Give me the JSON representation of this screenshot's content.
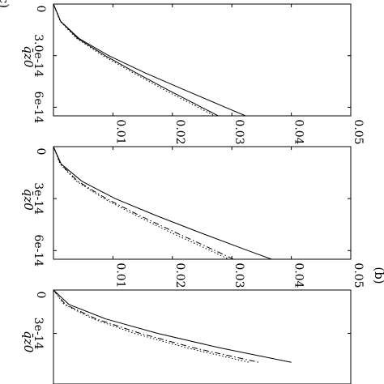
{
  "chart_data": [
    {
      "type": "line",
      "panel_label": "",
      "xlabel": "q̄z0",
      "ylabel": "",
      "xlim": [
        0,
        6.5e-14
      ],
      "ylim": [
        0,
        0.05
      ],
      "x_ticks": [
        "0",
        "3.0e-14",
        "6e-14"
      ],
      "y_ticks": [
        "0.01",
        "0.02",
        "0.03",
        "0.04",
        "0.05"
      ],
      "series": [
        {
          "style": "solid",
          "x": [
            0,
            1e-14,
            2e-14,
            3e-14,
            4e-14,
            5e-14,
            6e-14,
            6.5e-14
          ],
          "y": [
            0,
            0.0012,
            0.0043,
            0.0093,
            0.0154,
            0.0221,
            0.0289,
            0.0323
          ]
        },
        {
          "style": "solid",
          "x": [
            0,
            1e-14,
            2e-14,
            3e-14,
            4e-14,
            5e-14,
            6e-14,
            6.5e-14
          ],
          "y": [
            0,
            0.0012,
            0.0041,
            0.0087,
            0.0139,
            0.0193,
            0.0249,
            0.0277
          ]
        },
        {
          "style": "dotted",
          "x": [
            0,
            1e-14,
            2e-14,
            3e-14,
            4e-14,
            5e-14,
            6e-14,
            6.5e-14
          ],
          "y": [
            0,
            0.0011,
            0.0039,
            0.0083,
            0.0134,
            0.0187,
            0.0243,
            0.0271
          ]
        }
      ]
    },
    {
      "type": "line",
      "panel_label": "(b)",
      "xlabel": "q̄z0",
      "ylabel": "",
      "xlim": [
        0,
        6.5e-14
      ],
      "ylim": [
        0,
        0.05
      ],
      "x_ticks": [
        "0",
        "3e-14",
        "6e-14"
      ],
      "y_ticks": [
        "0.01",
        "0.02",
        "0.03",
        "0.04",
        "0.05"
      ],
      "series": [
        {
          "style": "solid",
          "x": [
            0,
            1e-14,
            2e-14,
            3e-14,
            4e-14,
            5e-14,
            6e-14,
            6.5e-14
          ],
          "y": [
            0,
            0.0013,
            0.0048,
            0.0104,
            0.0174,
            0.0249,
            0.0327,
            0.0367
          ]
        },
        {
          "style": "dashdot",
          "x": [
            0,
            1e-14,
            2e-14,
            3e-14,
            4e-14,
            5e-14,
            6e-14,
            6.5e-14
          ],
          "y": [
            0,
            0.0012,
            0.0041,
            0.0089,
            0.0146,
            0.0208,
            0.0272,
            0.0303
          ]
        },
        {
          "style": "dotted",
          "x": [
            0,
            1e-14,
            2e-14,
            3e-14,
            4e-14,
            5e-14,
            6e-14,
            6.5e-14
          ],
          "y": [
            0,
            0.0011,
            0.0039,
            0.0085,
            0.014,
            0.02,
            0.0264,
            0.0295
          ]
        }
      ]
    },
    {
      "type": "line",
      "panel_label": "(c)",
      "xlabel": "q̄z0",
      "ylabel": "",
      "xlim": [
        0,
        6.5e-14
      ],
      "ylim": [
        0,
        0.05
      ],
      "x_ticks": [
        "0",
        "3e-14"
      ],
      "y_ticks": [],
      "series": [
        {
          "style": "solid",
          "x": [
            0,
            1e-14,
            2e-14,
            3e-14,
            4e-14,
            5e-14
          ],
          "y": [
            0,
            0.0026,
            0.0088,
            0.0175,
            0.028,
            0.04
          ]
        },
        {
          "style": "dashdot",
          "x": [
            0,
            1e-14,
            2e-14,
            3e-14,
            4e-14,
            5e-14
          ],
          "y": [
            0,
            0.002,
            0.0072,
            0.0146,
            0.0236,
            0.0345
          ]
        },
        {
          "style": "dotted",
          "x": [
            0,
            1e-14,
            2e-14,
            3e-14,
            4e-14,
            5e-14
          ],
          "y": [
            0,
            0.0018,
            0.0067,
            0.0136,
            0.0224,
            0.0329
          ]
        }
      ]
    }
  ]
}
